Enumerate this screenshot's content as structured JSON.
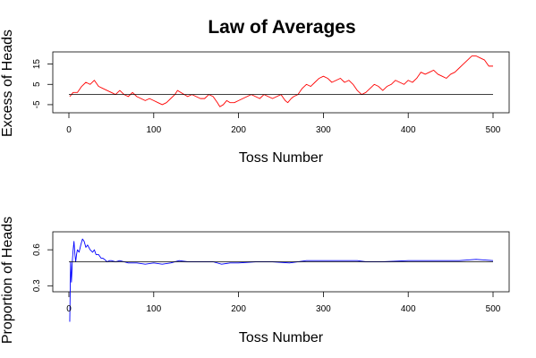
{
  "chart_data": [
    {
      "type": "line",
      "title": "Law of Averages",
      "xlabel": "Toss Number",
      "ylabel": "Excess of Heads",
      "xlim": [
        0,
        500
      ],
      "ylim": [
        -9,
        21
      ],
      "x_ticks": [
        0,
        100,
        200,
        300,
        400,
        500
      ],
      "y_ticks": [
        -5,
        5,
        15
      ],
      "reference_line_y": 0,
      "grid": false,
      "series": [
        {
          "color": "#ff0000",
          "points": [
            [
              1,
              -1
            ],
            [
              5,
              1
            ],
            [
              10,
              1
            ],
            [
              15,
              4
            ],
            [
              20,
              6
            ],
            [
              25,
              5
            ],
            [
              30,
              7
            ],
            [
              35,
              4
            ],
            [
              40,
              3
            ],
            [
              45,
              2
            ],
            [
              50,
              1
            ],
            [
              55,
              0
            ],
            [
              60,
              2
            ],
            [
              65,
              0
            ],
            [
              70,
              -1
            ],
            [
              75,
              1
            ],
            [
              80,
              -1
            ],
            [
              85,
              -2
            ],
            [
              90,
              -3
            ],
            [
              95,
              -2
            ],
            [
              100,
              -3
            ],
            [
              105,
              -4
            ],
            [
              110,
              -5
            ],
            [
              115,
              -4
            ],
            [
              120,
              -2
            ],
            [
              125,
              0
            ],
            [
              128,
              2
            ],
            [
              132,
              1
            ],
            [
              136,
              0
            ],
            [
              140,
              -1
            ],
            [
              145,
              0
            ],
            [
              150,
              -1
            ],
            [
              155,
              -2
            ],
            [
              160,
              -2
            ],
            [
              165,
              0
            ],
            [
              170,
              -1
            ],
            [
              175,
              -4
            ],
            [
              178,
              -6
            ],
            [
              182,
              -5
            ],
            [
              186,
              -3
            ],
            [
              190,
              -4
            ],
            [
              195,
              -4
            ],
            [
              200,
              -3
            ],
            [
              205,
              -2
            ],
            [
              210,
              -1
            ],
            [
              215,
              0
            ],
            [
              220,
              -1
            ],
            [
              225,
              -2
            ],
            [
              230,
              0
            ],
            [
              235,
              -1
            ],
            [
              240,
              -2
            ],
            [
              245,
              -1
            ],
            [
              250,
              0
            ],
            [
              255,
              -3
            ],
            [
              258,
              -4
            ],
            [
              262,
              -2
            ],
            [
              265,
              -1
            ],
            [
              270,
              0
            ],
            [
              275,
              3
            ],
            [
              280,
              5
            ],
            [
              285,
              4
            ],
            [
              290,
              6
            ],
            [
              295,
              8
            ],
            [
              300,
              9
            ],
            [
              305,
              8
            ],
            [
              310,
              6
            ],
            [
              315,
              7
            ],
            [
              320,
              8
            ],
            [
              325,
              6
            ],
            [
              330,
              7
            ],
            [
              335,
              5
            ],
            [
              340,
              2
            ],
            [
              345,
              0
            ],
            [
              350,
              1
            ],
            [
              355,
              3
            ],
            [
              360,
              5
            ],
            [
              365,
              4
            ],
            [
              370,
              2
            ],
            [
              375,
              4
            ],
            [
              380,
              5
            ],
            [
              385,
              7
            ],
            [
              390,
              6
            ],
            [
              395,
              5
            ],
            [
              400,
              7
            ],
            [
              405,
              6
            ],
            [
              410,
              8
            ],
            [
              415,
              11
            ],
            [
              420,
              10
            ],
            [
              425,
              11
            ],
            [
              430,
              12
            ],
            [
              435,
              10
            ],
            [
              440,
              9
            ],
            [
              445,
              8
            ],
            [
              450,
              10
            ],
            [
              455,
              11
            ],
            [
              460,
              13
            ],
            [
              465,
              15
            ],
            [
              470,
              17
            ],
            [
              475,
              19
            ],
            [
              480,
              19
            ],
            [
              485,
              18
            ],
            [
              490,
              17
            ],
            [
              495,
              14
            ],
            [
              500,
              14
            ]
          ]
        }
      ]
    },
    {
      "type": "line",
      "title": "",
      "xlabel": "Toss Number",
      "ylabel": "Proportion of Heads",
      "xlim": [
        0,
        500
      ],
      "ylim": [
        0.25,
        0.75
      ],
      "x_ticks": [
        0,
        100,
        200,
        300,
        400,
        500
      ],
      "y_ticks": [
        0.3,
        0.6
      ],
      "y_tick_labels": [
        "0.3",
        "0.6"
      ],
      "reference_line_y": 0.5,
      "grid": false,
      "series": [
        {
          "color": "#0000ff",
          "points": [
            [
              1,
              0.0
            ],
            [
              2,
              0.5
            ],
            [
              3,
              0.33
            ],
            [
              4,
              0.5
            ],
            [
              5,
              0.6
            ],
            [
              6,
              0.67
            ],
            [
              7,
              0.57
            ],
            [
              8,
              0.5
            ],
            [
              9,
              0.56
            ],
            [
              10,
              0.6
            ],
            [
              12,
              0.58
            ],
            [
              14,
              0.64
            ],
            [
              16,
              0.69
            ],
            [
              18,
              0.67
            ],
            [
              20,
              0.62
            ],
            [
              22,
              0.64
            ],
            [
              25,
              0.6
            ],
            [
              28,
              0.58
            ],
            [
              30,
              0.6
            ],
            [
              32,
              0.56
            ],
            [
              35,
              0.56
            ],
            [
              38,
              0.53
            ],
            [
              40,
              0.53
            ],
            [
              42,
              0.52
            ],
            [
              45,
              0.5
            ],
            [
              48,
              0.51
            ],
            [
              50,
              0.51
            ],
            [
              55,
              0.5
            ],
            [
              60,
              0.51
            ],
            [
              65,
              0.5
            ],
            [
              70,
              0.49
            ],
            [
              80,
              0.49
            ],
            [
              90,
              0.48
            ],
            [
              100,
              0.49
            ],
            [
              110,
              0.48
            ],
            [
              120,
              0.49
            ],
            [
              130,
              0.51
            ],
            [
              140,
              0.5
            ],
            [
              150,
              0.5
            ],
            [
              160,
              0.5
            ],
            [
              170,
              0.5
            ],
            [
              180,
              0.48
            ],
            [
              190,
              0.49
            ],
            [
              200,
              0.49
            ],
            [
              220,
              0.5
            ],
            [
              240,
              0.5
            ],
            [
              260,
              0.49
            ],
            [
              280,
              0.51
            ],
            [
              300,
              0.51
            ],
            [
              320,
              0.51
            ],
            [
              340,
              0.51
            ],
            [
              350,
              0.5
            ],
            [
              370,
              0.5
            ],
            [
              400,
              0.51
            ],
            [
              420,
              0.51
            ],
            [
              440,
              0.51
            ],
            [
              460,
              0.51
            ],
            [
              480,
              0.52
            ],
            [
              500,
              0.51
            ]
          ]
        }
      ]
    }
  ]
}
